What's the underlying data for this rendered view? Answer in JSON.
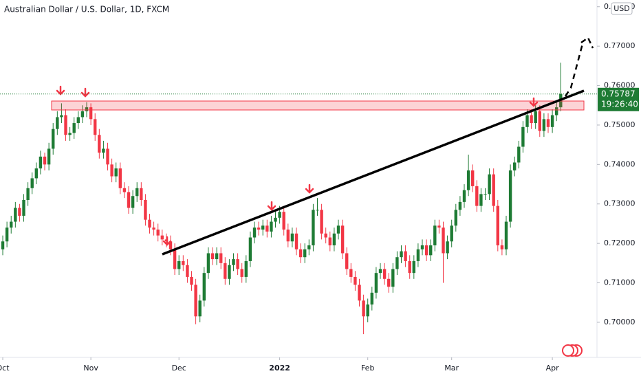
{
  "chart_data": {
    "type": "candlestick",
    "title": "Australian Dollar / U.S. Dollar, 1D, FXCM",
    "currency": "USD",
    "last_price": 0.75787,
    "countdown": "19:26:40",
    "up_color": "#1e7b34",
    "down_color": "#f23645",
    "xlim": [
      -0.66,
      141.64
    ],
    "xticks": [
      {
        "value": 0,
        "label": "Oct"
      },
      {
        "value": 21,
        "label": "Nov"
      },
      {
        "value": 42,
        "label": "Dec"
      },
      {
        "value": 66,
        "label": "2022"
      },
      {
        "value": 87,
        "label": "Feb"
      },
      {
        "value": 107,
        "label": "Mar"
      },
      {
        "value": 131,
        "label": "Apr"
      }
    ],
    "ylim": [
      0.6911,
      0.7817
    ],
    "yticks": [
      {
        "value": 0.7,
        "label": "0.70000"
      },
      {
        "value": 0.71,
        "label": "0.71000"
      },
      {
        "value": 0.72,
        "label": "0.72000"
      },
      {
        "value": 0.73,
        "label": "0.73000"
      },
      {
        "value": 0.74,
        "label": "0.74000"
      },
      {
        "value": 0.75,
        "label": "0.75000"
      },
      {
        "value": 0.76,
        "label": "0.76000"
      },
      {
        "value": 0.77,
        "label": "0.77000"
      },
      {
        "value": 0.78,
        "label": "0.78000"
      }
    ],
    "candles": [
      [
        0.7185,
        0.722,
        0.717,
        0.7205
      ],
      [
        0.7205,
        0.7255,
        0.719,
        0.724
      ],
      [
        0.724,
        0.727,
        0.7225,
        0.7255
      ],
      [
        0.7255,
        0.7305,
        0.724,
        0.729
      ],
      [
        0.729,
        0.73,
        0.7255,
        0.727
      ],
      [
        0.727,
        0.7325,
        0.7255,
        0.731
      ],
      [
        0.731,
        0.7355,
        0.7295,
        0.734
      ],
      [
        0.734,
        0.738,
        0.7325,
        0.7365
      ],
      [
        0.7365,
        0.7405,
        0.735,
        0.739
      ],
      [
        0.739,
        0.7435,
        0.7375,
        0.742
      ],
      [
        0.742,
        0.743,
        0.7385,
        0.74
      ],
      [
        0.74,
        0.7455,
        0.7385,
        0.744
      ],
      [
        0.744,
        0.7505,
        0.7425,
        0.749
      ],
      [
        0.749,
        0.7535,
        0.7475,
        0.752
      ],
      [
        0.752,
        0.7555,
        0.7505,
        0.7525
      ],
      [
        0.7525,
        0.754,
        0.746,
        0.7475
      ],
      [
        0.7475,
        0.7495,
        0.746,
        0.748
      ],
      [
        0.748,
        0.752,
        0.7465,
        0.7505
      ],
      [
        0.7505,
        0.7535,
        0.749,
        0.752
      ],
      [
        0.752,
        0.755,
        0.7505,
        0.7535
      ],
      [
        0.7535,
        0.7558,
        0.752,
        0.7545
      ],
      [
        0.7545,
        0.7555,
        0.75,
        0.7515
      ],
      [
        0.7515,
        0.753,
        0.746,
        0.7475
      ],
      [
        0.7475,
        0.749,
        0.7415,
        0.743
      ],
      [
        0.743,
        0.746,
        0.7415,
        0.744
      ],
      [
        0.744,
        0.7455,
        0.7385,
        0.74
      ],
      [
        0.74,
        0.7415,
        0.7355,
        0.737
      ],
      [
        0.737,
        0.7405,
        0.7355,
        0.739
      ],
      [
        0.739,
        0.7405,
        0.7325,
        0.734
      ],
      [
        0.734,
        0.7355,
        0.7315,
        0.733
      ],
      [
        0.733,
        0.7345,
        0.7275,
        0.729
      ],
      [
        0.729,
        0.7335,
        0.7275,
        0.732
      ],
      [
        0.732,
        0.7355,
        0.7305,
        0.734
      ],
      [
        0.734,
        0.7355,
        0.7295,
        0.731
      ],
      [
        0.731,
        0.7325,
        0.7245,
        0.726
      ],
      [
        0.726,
        0.7275,
        0.7225,
        0.724
      ],
      [
        0.724,
        0.7255,
        0.722,
        0.7235
      ],
      [
        0.7235,
        0.725,
        0.7205,
        0.722
      ],
      [
        0.722,
        0.7235,
        0.7195,
        0.721
      ],
      [
        0.721,
        0.7225,
        0.719,
        0.7205
      ],
      [
        0.7205,
        0.722,
        0.717,
        0.7185
      ],
      [
        0.7185,
        0.72,
        0.712,
        0.7135
      ],
      [
        0.7135,
        0.717,
        0.712,
        0.7155
      ],
      [
        0.7155,
        0.717,
        0.713,
        0.7145
      ],
      [
        0.7145,
        0.716,
        0.71,
        0.7115
      ],
      [
        0.7115,
        0.713,
        0.708,
        0.7095
      ],
      [
        0.7095,
        0.711,
        0.6995,
        0.7015
      ],
      [
        0.7015,
        0.707,
        0.7,
        0.7055
      ],
      [
        0.7055,
        0.714,
        0.704,
        0.7125
      ],
      [
        0.7125,
        0.719,
        0.711,
        0.7175
      ],
      [
        0.7175,
        0.719,
        0.7145,
        0.716
      ],
      [
        0.716,
        0.719,
        0.7145,
        0.7175
      ],
      [
        0.7175,
        0.719,
        0.7135,
        0.715
      ],
      [
        0.715,
        0.7165,
        0.7095,
        0.711
      ],
      [
        0.711,
        0.716,
        0.7095,
        0.7145
      ],
      [
        0.7145,
        0.7175,
        0.713,
        0.716
      ],
      [
        0.716,
        0.7175,
        0.712,
        0.7135
      ],
      [
        0.7135,
        0.715,
        0.71,
        0.7115
      ],
      [
        0.7115,
        0.717,
        0.71,
        0.7155
      ],
      [
        0.7155,
        0.723,
        0.714,
        0.7215
      ],
      [
        0.7215,
        0.7255,
        0.72,
        0.724
      ],
      [
        0.724,
        0.7255,
        0.722,
        0.7235
      ],
      [
        0.7235,
        0.726,
        0.722,
        0.7245
      ],
      [
        0.7245,
        0.726,
        0.7215,
        0.723
      ],
      [
        0.723,
        0.727,
        0.7215,
        0.7255
      ],
      [
        0.7255,
        0.728,
        0.724,
        0.7265
      ],
      [
        0.7265,
        0.7295,
        0.725,
        0.728
      ],
      [
        0.728,
        0.7295,
        0.722,
        0.7235
      ],
      [
        0.7235,
        0.725,
        0.719,
        0.7205
      ],
      [
        0.7205,
        0.724,
        0.719,
        0.7225
      ],
      [
        0.7225,
        0.724,
        0.717,
        0.7185
      ],
      [
        0.7185,
        0.72,
        0.715,
        0.7165
      ],
      [
        0.7165,
        0.72,
        0.715,
        0.7185
      ],
      [
        0.7185,
        0.721,
        0.717,
        0.7195
      ],
      [
        0.7195,
        0.73,
        0.718,
        0.7285
      ],
      [
        0.7285,
        0.7315,
        0.727,
        0.7285
      ],
      [
        0.7285,
        0.73,
        0.721,
        0.7225
      ],
      [
        0.7225,
        0.724,
        0.72,
        0.7215
      ],
      [
        0.7215,
        0.723,
        0.718,
        0.7195
      ],
      [
        0.7195,
        0.724,
        0.718,
        0.7225
      ],
      [
        0.7225,
        0.726,
        0.721,
        0.7245
      ],
      [
        0.7245,
        0.726,
        0.716,
        0.7175
      ],
      [
        0.7175,
        0.719,
        0.712,
        0.7135
      ],
      [
        0.7135,
        0.715,
        0.71,
        0.7115
      ],
      [
        0.7115,
        0.713,
        0.708,
        0.7095
      ],
      [
        0.7095,
        0.711,
        0.704,
        0.7055
      ],
      [
        0.7055,
        0.707,
        0.697,
        0.7015
      ],
      [
        0.7015,
        0.706,
        0.7,
        0.7045
      ],
      [
        0.7045,
        0.709,
        0.703,
        0.7075
      ],
      [
        0.7075,
        0.714,
        0.706,
        0.7125
      ],
      [
        0.7125,
        0.715,
        0.711,
        0.7135
      ],
      [
        0.7135,
        0.715,
        0.7095,
        0.711
      ],
      [
        0.711,
        0.7125,
        0.7075,
        0.709
      ],
      [
        0.709,
        0.715,
        0.7075,
        0.7135
      ],
      [
        0.7135,
        0.718,
        0.712,
        0.7165
      ],
      [
        0.7165,
        0.7195,
        0.715,
        0.718
      ],
      [
        0.718,
        0.7195,
        0.714,
        0.7155
      ],
      [
        0.7155,
        0.717,
        0.711,
        0.7125
      ],
      [
        0.7125,
        0.717,
        0.711,
        0.7155
      ],
      [
        0.7155,
        0.72,
        0.714,
        0.7185
      ],
      [
        0.7185,
        0.721,
        0.717,
        0.7195
      ],
      [
        0.7195,
        0.721,
        0.7155,
        0.717
      ],
      [
        0.717,
        0.721,
        0.7155,
        0.7195
      ],
      [
        0.7195,
        0.726,
        0.718,
        0.7245
      ],
      [
        0.7245,
        0.726,
        0.7225,
        0.724
      ],
      [
        0.724,
        0.7255,
        0.71,
        0.7175
      ],
      [
        0.7175,
        0.722,
        0.716,
        0.7205
      ],
      [
        0.7205,
        0.726,
        0.719,
        0.7245
      ],
      [
        0.7245,
        0.73,
        0.723,
        0.7285
      ],
      [
        0.7285,
        0.732,
        0.727,
        0.7305
      ],
      [
        0.7305,
        0.735,
        0.729,
        0.7335
      ],
      [
        0.7335,
        0.7425,
        0.732,
        0.7385
      ],
      [
        0.7385,
        0.74,
        0.733,
        0.7345
      ],
      [
        0.7345,
        0.736,
        0.728,
        0.7295
      ],
      [
        0.7295,
        0.734,
        0.728,
        0.7325
      ],
      [
        0.7325,
        0.734,
        0.731,
        0.7325
      ],
      [
        0.7325,
        0.739,
        0.731,
        0.7375
      ],
      [
        0.7375,
        0.739,
        0.728,
        0.7295
      ],
      [
        0.7295,
        0.731,
        0.718,
        0.7195
      ],
      [
        0.7195,
        0.721,
        0.717,
        0.7185
      ],
      [
        0.7185,
        0.727,
        0.717,
        0.7255
      ],
      [
        0.7255,
        0.74,
        0.724,
        0.7385
      ],
      [
        0.7385,
        0.742,
        0.737,
        0.7405
      ],
      [
        0.7405,
        0.746,
        0.739,
        0.7445
      ],
      [
        0.7445,
        0.751,
        0.743,
        0.7495
      ],
      [
        0.7495,
        0.754,
        0.748,
        0.7525
      ],
      [
        0.7525,
        0.754,
        0.749,
        0.7505
      ],
      [
        0.7505,
        0.755,
        0.749,
        0.7535
      ],
      [
        0.7535,
        0.755,
        0.747,
        0.7485
      ],
      [
        0.7485,
        0.753,
        0.747,
        0.7515
      ],
      [
        0.7515,
        0.753,
        0.748,
        0.7495
      ],
      [
        0.7495,
        0.754,
        0.748,
        0.7525
      ],
      [
        0.7525,
        0.756,
        0.751,
        0.7545
      ],
      [
        0.7545,
        0.7658,
        0.7535,
        0.75787
      ]
    ]
  }
}
